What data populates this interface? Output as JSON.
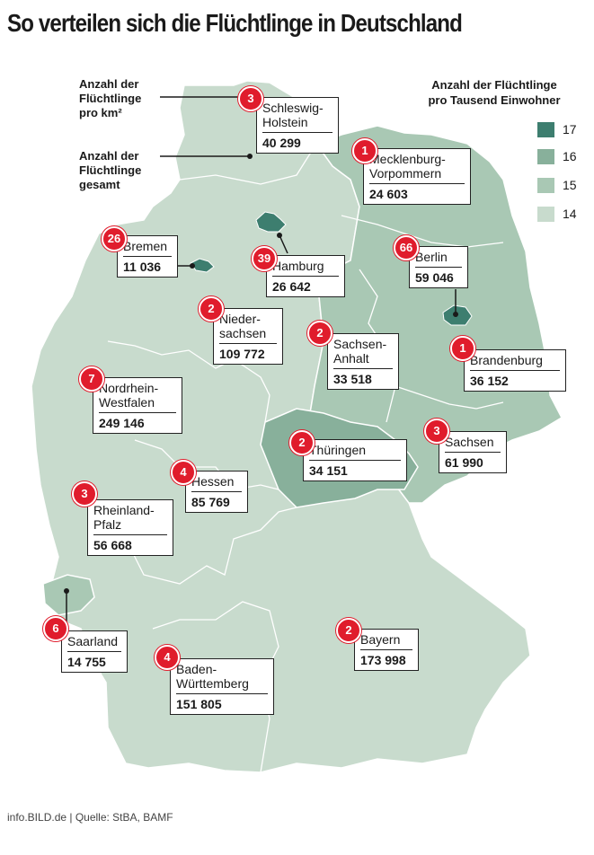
{
  "title": "So verteilen sich die Flüchtlinge in Deutschland",
  "legend": {
    "title_line1": "Anzahl der Flüchtlinge",
    "title_line2": "pro Tausend Einwohner",
    "items": [
      {
        "value": "17",
        "color": "#3d7e6f"
      },
      {
        "value": "16",
        "color": "#88b09b"
      },
      {
        "value": "15",
        "color": "#a9c8b4"
      },
      {
        "value": "14",
        "color": "#c8dbcd"
      }
    ]
  },
  "annotations": {
    "per_km2": {
      "line1": "Anzahl der",
      "line2": "Flüchtlinge",
      "line3": "pro km²"
    },
    "total": {
      "line1": "Anzahl der",
      "line2": "Flüchtlinge",
      "line3": "gesamt"
    }
  },
  "states": [
    {
      "name_line1": "Schleswig-",
      "name_line2": "Holstein",
      "total": "40 299",
      "per_km2": "3",
      "per_thousand": 14
    },
    {
      "name_line1": "Mecklenburg-",
      "name_line2": "Vorpommern",
      "total": "24 603",
      "per_km2": "1",
      "per_thousand": 15
    },
    {
      "name_line1": "Bremen",
      "name_line2": "",
      "total": "11 036",
      "per_km2": "26",
      "per_thousand": 17
    },
    {
      "name_line1": "Hamburg",
      "name_line2": "",
      "total": "26 642",
      "per_km2": "39",
      "per_thousand": 17
    },
    {
      "name_line1": "Berlin",
      "name_line2": "",
      "total": "59 046",
      "per_km2": "66",
      "per_thousand": 17
    },
    {
      "name_line1": "Nieder-",
      "name_line2": "sachsen",
      "total": "109 772",
      "per_km2": "2",
      "per_thousand": 14
    },
    {
      "name_line1": "Sachsen-",
      "name_line2": "Anhalt",
      "total": "33 518",
      "per_km2": "2",
      "per_thousand": 15
    },
    {
      "name_line1": "Brandenburg",
      "name_line2": "",
      "total": "36 152",
      "per_km2": "1",
      "per_thousand": 15
    },
    {
      "name_line1": "Nordrhein-",
      "name_line2": "Westfalen",
      "total": "249 146",
      "per_km2": "7",
      "per_thousand": 14
    },
    {
      "name_line1": "Thüringen",
      "name_line2": "",
      "total": "34 151",
      "per_km2": "2",
      "per_thousand": 16
    },
    {
      "name_line1": "Sachsen",
      "name_line2": "",
      "total": "61 990",
      "per_km2": "3",
      "per_thousand": 15
    },
    {
      "name_line1": "Hessen",
      "name_line2": "",
      "total": "85 769",
      "per_km2": "4",
      "per_thousand": 14
    },
    {
      "name_line1": "Rheinland-",
      "name_line2": "Pfalz",
      "total": "56 668",
      "per_km2": "3",
      "per_thousand": 14
    },
    {
      "name_line1": "Saarland",
      "name_line2": "",
      "total": "14 755",
      "per_km2": "6",
      "per_thousand": 15
    },
    {
      "name_line1": "Baden-",
      "name_line2": "Württemberg",
      "total": "151 805",
      "per_km2": "4",
      "per_thousand": 14
    },
    {
      "name_line1": "Bayern",
      "name_line2": "",
      "total": "173 998",
      "per_km2": "2",
      "per_thousand": 14
    }
  ],
  "source": "info.BILD.de | Quelle: StBA, BAMF"
}
